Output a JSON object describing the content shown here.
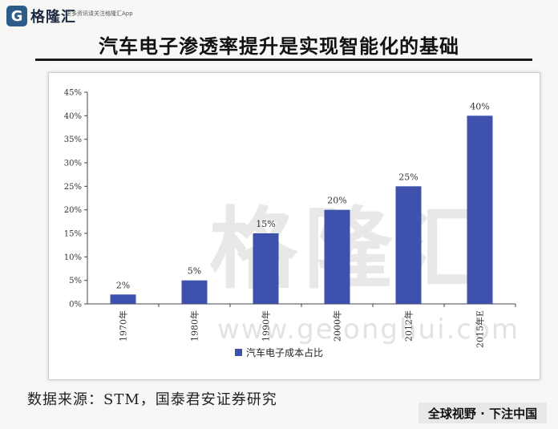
{
  "header": {
    "logo_mark": "G",
    "logo_text": "格隆汇",
    "slogan": "更多资讯请关注格隆汇App"
  },
  "title": "汽车电子渗透率提升是实现智能化的基础",
  "watermark": {
    "text": "格隆汇",
    "url": "www.gelonghui.com"
  },
  "source": "数据来源：STM，国泰君安证券研究",
  "footer": "全球视野 · 下注中国",
  "colors": {
    "bar": "#3d51ad",
    "axis": "#444444",
    "title_rule": "#1b1b1b"
  },
  "chart_data": {
    "type": "bar",
    "categories": [
      "1970年",
      "1980年",
      "1990年",
      "2000年",
      "2012年",
      "2015年E"
    ],
    "series": [
      {
        "name": "汽车电子成本占比",
        "values": [
          2,
          5,
          15,
          20,
          25,
          40
        ]
      }
    ],
    "data_labels": [
      "2%",
      "5%",
      "15%",
      "20%",
      "25%",
      "40%"
    ],
    "y_ticks": [
      "0%",
      "5%",
      "10%",
      "15%",
      "20%",
      "25%",
      "30%",
      "35%",
      "40%",
      "45%"
    ],
    "ylim": [
      0,
      45
    ],
    "ylabel": "",
    "xlabel": "",
    "legend_position": "bottom-center",
    "grid": false
  }
}
